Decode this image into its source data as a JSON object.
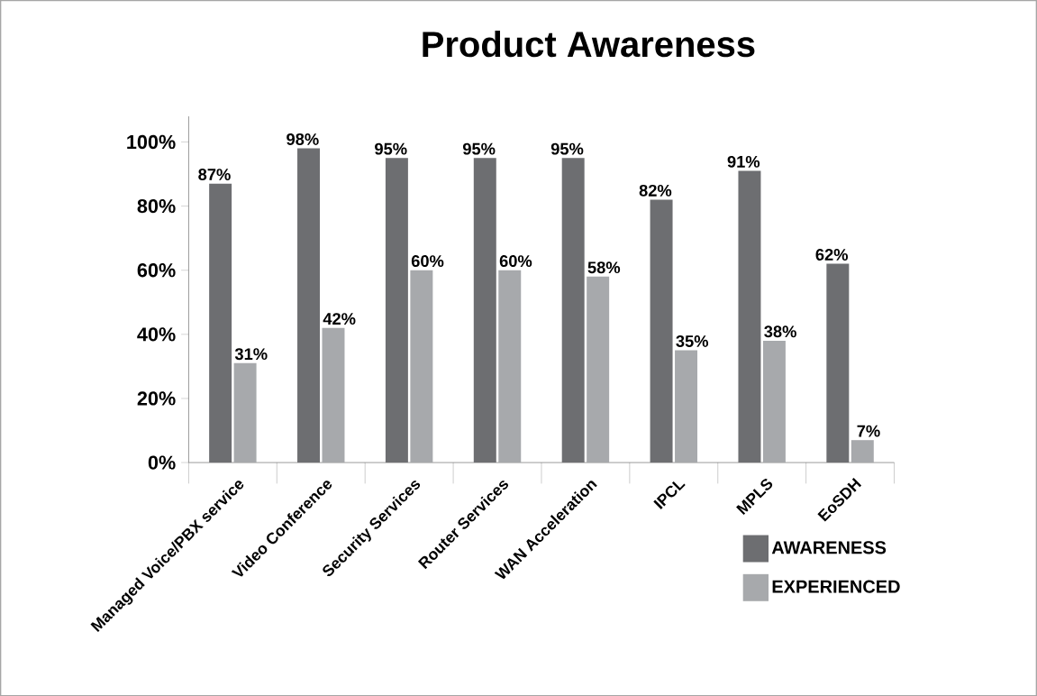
{
  "chart_data": {
    "type": "bar",
    "title": "Product Awareness",
    "categories": [
      "Managed Voice/PBX service",
      "Video Conference",
      "Security Services",
      "Router Services",
      "WAN Acceleration",
      "IPCL",
      "MPLS",
      "EoSDH"
    ],
    "series": [
      {
        "name": "AWARENESS",
        "color": "#6d6e71",
        "values": [
          87,
          98,
          95,
          95,
          95,
          82,
          91,
          62
        ],
        "value_labels": [
          "87%",
          "98%",
          "95%",
          "95%",
          "95%",
          "82%",
          "91%",
          "62%"
        ]
      },
      {
        "name": "EXPERIENCED",
        "color": "#a7a9ac",
        "values": [
          31,
          42,
          60,
          60,
          58,
          35,
          38,
          7
        ],
        "value_labels": [
          "31%",
          "42%",
          "60%",
          "60%",
          "58%",
          "35%",
          "38%",
          "7%"
        ]
      }
    ],
    "ylim": [
      0,
      108
    ],
    "yticks": [
      {
        "value": 0,
        "label": "0%"
      },
      {
        "value": 20,
        "label": "20%"
      },
      {
        "value": 40,
        "label": "40%"
      },
      {
        "value": 60,
        "label": "60%"
      },
      {
        "value": 80,
        "label": "80%"
      },
      {
        "value": 100,
        "label": "100%"
      }
    ],
    "grid": false,
    "legend": "bottom right"
  }
}
